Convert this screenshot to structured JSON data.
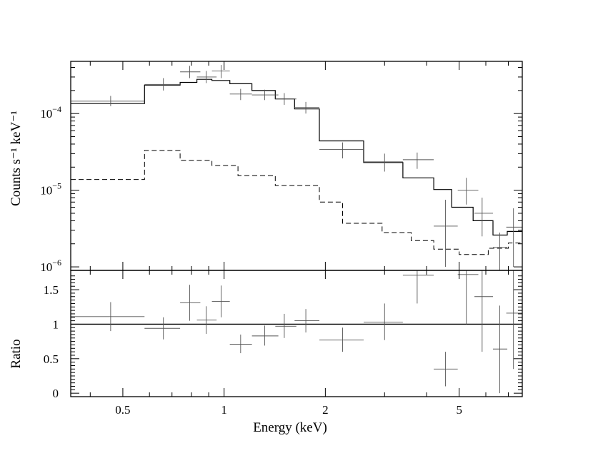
{
  "chart_data": [
    {
      "type": "step",
      "panel": "spectrum",
      "xscale": "log",
      "yscale": "log",
      "xlim": [
        0.35,
        7.7
      ],
      "ylim": [
        9e-07,
        0.00048
      ],
      "ylabel": "Counts s⁻¹ keV⁻¹",
      "y_ticks": [
        {
          "v": 0.0001,
          "base": "10",
          "exp": "−4"
        },
        {
          "v": 1e-05,
          "base": "10",
          "exp": "−5"
        },
        {
          "v": 1e-06,
          "base": "10",
          "exp": "−6"
        }
      ],
      "data": {
        "name": "data",
        "points": [
          {
            "x": 0.46,
            "xlo": 0.35,
            "xhi": 0.58,
            "y": 0.000145,
            "ylo": 0.000125,
            "yhi": 0.00017
          },
          {
            "x": 0.66,
            "xlo": 0.58,
            "xhi": 0.74,
            "y": 0.00024,
            "ylo": 0.0002,
            "yhi": 0.00029
          },
          {
            "x": 0.79,
            "xlo": 0.74,
            "xhi": 0.85,
            "y": 0.00035,
            "ylo": 0.00029,
            "yhi": 0.00042
          },
          {
            "x": 0.885,
            "xlo": 0.83,
            "xhi": 0.95,
            "y": 0.0003,
            "ylo": 0.00025,
            "yhi": 0.00036
          },
          {
            "x": 0.98,
            "xlo": 0.92,
            "xhi": 1.04,
            "y": 0.00036,
            "ylo": 0.00029,
            "yhi": 0.00043
          },
          {
            "x": 1.12,
            "xlo": 1.04,
            "xhi": 1.21,
            "y": 0.00018,
            "ylo": 0.00015,
            "yhi": 0.00021
          },
          {
            "x": 1.32,
            "xlo": 1.21,
            "xhi": 1.45,
            "y": 0.000175,
            "ylo": 0.00015,
            "yhi": 0.000205
          },
          {
            "x": 1.51,
            "xlo": 1.42,
            "xhi": 1.64,
            "y": 0.000155,
            "ylo": 0.00013,
            "yhi": 0.000185
          },
          {
            "x": 1.75,
            "xlo": 1.62,
            "xhi": 1.92,
            "y": 0.00012,
            "ylo": 0.0001,
            "yhi": 0.000142
          },
          {
            "x": 2.25,
            "xlo": 1.92,
            "xhi": 2.6,
            "y": 3.4e-05,
            "ylo": 2.6e-05,
            "yhi": 4.2e-05
          },
          {
            "x": 3.0,
            "xlo": 2.6,
            "xhi": 3.4,
            "y": 2.35e-05,
            "ylo": 1.75e-05,
            "yhi": 3e-05
          },
          {
            "x": 3.75,
            "xlo": 3.4,
            "xhi": 4.2,
            "y": 2.5e-05,
            "ylo": 1.9e-05,
            "yhi": 3.1e-05
          },
          {
            "x": 4.55,
            "xlo": 4.2,
            "xhi": 4.95,
            "y": 3.4e-06,
            "ylo": 1e-06,
            "yhi": 7.5e-06
          },
          {
            "x": 5.25,
            "xlo": 4.95,
            "xhi": 5.7,
            "y": 1e-05,
            "ylo": 6.5e-06,
            "yhi": 1.45e-05
          },
          {
            "x": 5.85,
            "xlo": 5.55,
            "xhi": 6.3,
            "y": 5e-06,
            "ylo": 2.5e-06,
            "yhi": 8e-06
          },
          {
            "x": 6.6,
            "xlo": 6.3,
            "xhi": 6.95,
            "y": 1.8e-06,
            "ylo": 9e-07,
            "yhi": 2.8e-06
          },
          {
            "x": 7.25,
            "xlo": 6.9,
            "xhi": 7.7,
            "y": 3.3e-06,
            "ylo": 1e-06,
            "yhi": 5.8e-06
          }
        ]
      },
      "model_total": {
        "name": "total model",
        "steps": [
          {
            "x0": 0.35,
            "x1": 0.58,
            "y": 0.000135
          },
          {
            "x0": 0.58,
            "x1": 0.74,
            "y": 0.000235
          },
          {
            "x0": 0.74,
            "x1": 0.83,
            "y": 0.000255
          },
          {
            "x0": 0.83,
            "x1": 0.92,
            "y": 0.00028
          },
          {
            "x0": 0.92,
            "x1": 1.04,
            "y": 0.00027
          },
          {
            "x0": 1.04,
            "x1": 1.21,
            "y": 0.000245
          },
          {
            "x0": 1.21,
            "x1": 1.42,
            "y": 0.0002
          },
          {
            "x0": 1.42,
            "x1": 1.62,
            "y": 0.000155
          },
          {
            "x0": 1.62,
            "x1": 1.92,
            "y": 0.000115
          },
          {
            "x0": 1.92,
            "x1": 2.6,
            "y": 4.4e-05
          },
          {
            "x0": 2.6,
            "x1": 3.4,
            "y": 2.3e-05
          },
          {
            "x0": 3.4,
            "x1": 4.2,
            "y": 1.45e-05
          },
          {
            "x0": 4.2,
            "x1": 4.75,
            "y": 1.02e-05
          },
          {
            "x0": 4.75,
            "x1": 5.5,
            "y": 6e-06
          },
          {
            "x0": 5.5,
            "x1": 6.3,
            "y": 4e-06
          },
          {
            "x0": 6.3,
            "x1": 6.95,
            "y": 2.6e-06
          },
          {
            "x0": 6.95,
            "x1": 7.7,
            "y": 2.9e-06
          }
        ]
      },
      "model_component": {
        "name": "dashed component",
        "steps": [
          {
            "x0": 0.35,
            "x1": 0.58,
            "y": 1.38e-05
          },
          {
            "x0": 0.58,
            "x1": 0.74,
            "y": 3.3e-05
          },
          {
            "x0": 0.74,
            "x1": 0.92,
            "y": 2.45e-05
          },
          {
            "x0": 0.92,
            "x1": 1.1,
            "y": 2.1e-05
          },
          {
            "x0": 1.1,
            "x1": 1.42,
            "y": 1.55e-05
          },
          {
            "x0": 1.42,
            "x1": 1.92,
            "y": 1.15e-05
          },
          {
            "x0": 1.92,
            "x1": 2.25,
            "y": 7e-06
          },
          {
            "x0": 2.25,
            "x1": 2.95,
            "y": 3.7e-06
          },
          {
            "x0": 2.95,
            "x1": 3.6,
            "y": 2.8e-06
          },
          {
            "x0": 3.6,
            "x1": 4.2,
            "y": 2.2e-06
          },
          {
            "x0": 4.2,
            "x1": 5.0,
            "y": 1.7e-06
          },
          {
            "x0": 5.0,
            "x1": 6.1,
            "y": 1.45e-06
          },
          {
            "x0": 6.1,
            "x1": 7.0,
            "y": 1.75e-06
          },
          {
            "x0": 7.0,
            "x1": 7.7,
            "y": 2.05e-06
          }
        ]
      }
    },
    {
      "type": "scatter",
      "panel": "ratio",
      "xscale": "log",
      "xlim": [
        0.35,
        7.7
      ],
      "ylim": [
        -0.05,
        1.78
      ],
      "xlabel": "Energy (keV)",
      "ylabel": "Ratio",
      "reference_line": 1,
      "x_ticks": [
        {
          "v": 0.5,
          "label": "0.5"
        },
        {
          "v": 1,
          "label": "1"
        },
        {
          "v": 2,
          "label": "2"
        },
        {
          "v": 5,
          "label": "5"
        }
      ],
      "y_ticks": [
        {
          "v": 0,
          "label": "0"
        },
        {
          "v": 0.5,
          "label": "0.5"
        },
        {
          "v": 1,
          "label": "1"
        },
        {
          "v": 1.5,
          "label": "1.5"
        }
      ],
      "points": [
        {
          "x": 0.46,
          "xlo": 0.35,
          "xhi": 0.58,
          "y": 1.11,
          "ylo": 0.9,
          "yhi": 1.32
        },
        {
          "x": 0.66,
          "xlo": 0.58,
          "xhi": 0.74,
          "y": 0.94,
          "ylo": 0.78,
          "yhi": 1.1
        },
        {
          "x": 0.79,
          "xlo": 0.74,
          "xhi": 0.85,
          "y": 1.31,
          "ylo": 1.05,
          "yhi": 1.57
        },
        {
          "x": 0.885,
          "xlo": 0.83,
          "xhi": 0.95,
          "y": 1.06,
          "ylo": 0.86,
          "yhi": 1.26
        },
        {
          "x": 0.98,
          "xlo": 0.92,
          "xhi": 1.04,
          "y": 1.33,
          "ylo": 1.1,
          "yhi": 1.56
        },
        {
          "x": 1.12,
          "xlo": 1.04,
          "xhi": 1.21,
          "y": 0.71,
          "ylo": 0.58,
          "yhi": 0.85
        },
        {
          "x": 1.32,
          "xlo": 1.21,
          "xhi": 1.45,
          "y": 0.83,
          "ylo": 0.69,
          "yhi": 0.98
        },
        {
          "x": 1.51,
          "xlo": 1.42,
          "xhi": 1.64,
          "y": 0.97,
          "ylo": 0.8,
          "yhi": 1.15
        },
        {
          "x": 1.75,
          "xlo": 1.62,
          "xhi": 1.92,
          "y": 1.05,
          "ylo": 0.88,
          "yhi": 1.22
        },
        {
          "x": 2.25,
          "xlo": 1.92,
          "xhi": 2.6,
          "y": 0.77,
          "ylo": 0.6,
          "yhi": 0.95
        },
        {
          "x": 3.0,
          "xlo": 2.6,
          "xhi": 3.4,
          "y": 1.03,
          "ylo": 0.77,
          "yhi": 1.3
        },
        {
          "x": 3.75,
          "xlo": 3.4,
          "xhi": 4.2,
          "y": 1.71,
          "ylo": 1.3,
          "yhi": 1.78
        },
        {
          "x": 4.55,
          "xlo": 4.2,
          "xhi": 4.95,
          "y": 0.35,
          "ylo": 0.1,
          "yhi": 0.6
        },
        {
          "x": 5.25,
          "xlo": 4.95,
          "xhi": 5.7,
          "y": 1.72,
          "ylo": 1.0,
          "yhi": 1.78
        },
        {
          "x": 5.85,
          "xlo": 5.55,
          "xhi": 6.3,
          "y": 1.4,
          "ylo": 0.6,
          "yhi": 1.78
        },
        {
          "x": 6.6,
          "xlo": 6.3,
          "xhi": 6.95,
          "y": 0.64,
          "ylo": 0.0,
          "yhi": 1.27
        },
        {
          "x": 7.25,
          "xlo": 6.9,
          "xhi": 7.7,
          "y": 1.16,
          "ylo": 0.35,
          "yhi": 1.78
        }
      ]
    }
  ]
}
